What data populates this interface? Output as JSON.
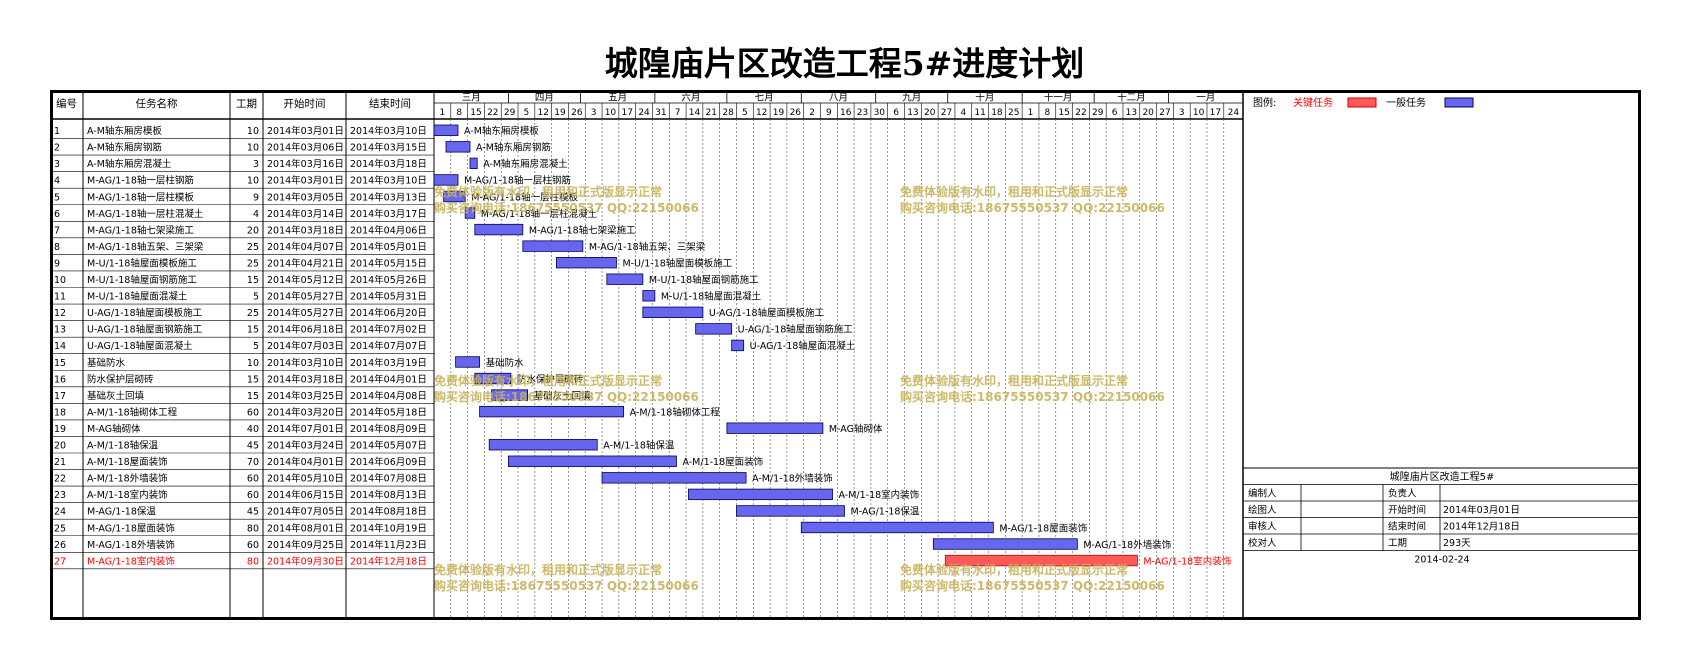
{
  "title": "城隍庙片区改造工程5#进度计划",
  "headers": {
    "id": "编号",
    "name": "任务名称",
    "dur": "工期",
    "start": "开始时间",
    "end": "结束时间"
  },
  "months": [
    "三月",
    "四月",
    "五月",
    "六月",
    "七月",
    "八月",
    "九月",
    "十月",
    "十一月",
    "十二月",
    "一月"
  ],
  "day_ticks": [
    "1",
    "8",
    "15",
    "22",
    "29",
    "5",
    "12",
    "19",
    "26",
    "3",
    "10",
    "17",
    "24",
    "31",
    "7",
    "14",
    "21",
    "28",
    "5",
    "12",
    "19",
    "26",
    "2",
    "9",
    "16",
    "23",
    "30",
    "6",
    "13",
    "20",
    "27",
    "4",
    "11",
    "18",
    "25",
    "1",
    "8",
    "15",
    "22",
    "29",
    "6",
    "13",
    "20",
    "27",
    "3",
    "10",
    "17",
    "24"
  ],
  "legend": {
    "label": "图例:",
    "critical": "关键任务",
    "normal": "一般任务"
  },
  "info": {
    "project": "城隍庙片区改造工程5#",
    "rows": [
      [
        "编制人",
        "",
        "负责人",
        ""
      ],
      [
        "绘图人",
        "",
        "开始时间",
        "2014年03月01日"
      ],
      [
        "审核人",
        "",
        "结束时间",
        "2014年12月18日"
      ],
      [
        "校对人",
        "",
        "工期",
        "293天"
      ]
    ],
    "date": "2014-02-24"
  },
  "watermark": [
    "免费体验版有水印，租用和正式版显示正常",
    "购买咨询电话:18675550537 QQ:22150066"
  ],
  "colors": {
    "critical": "#ff5a5a",
    "normal": "#6666ee",
    "critical_text": "#ff0000",
    "watermark": "#c8b25a"
  },
  "chart_data": {
    "type": "gantt",
    "time_range": [
      "2014-03-01",
      "2015-01-31"
    ],
    "tasks": [
      {
        "id": "1",
        "name": "A-M轴东厢房模板",
        "duration": 10,
        "start": "2014年03月01日",
        "end": "2014年03月10日",
        "critical": false
      },
      {
        "id": "2",
        "name": "A-M轴东厢房钢筋",
        "duration": 10,
        "start": "2014年03月06日",
        "end": "2014年03月15日",
        "critical": false
      },
      {
        "id": "3",
        "name": "A-M轴东厢房混凝土",
        "duration": 3,
        "start": "2014年03月16日",
        "end": "2014年03月18日",
        "critical": false
      },
      {
        "id": "4",
        "name": "M-AG/1-18轴一层柱钢筋",
        "duration": 10,
        "start": "2014年03月01日",
        "end": "2014年03月10日",
        "critical": false
      },
      {
        "id": "5",
        "name": "M-AG/1-18轴一层柱模板",
        "duration": 9,
        "start": "2014年03月05日",
        "end": "2014年03月13日",
        "critical": false
      },
      {
        "id": "6",
        "name": "M-AG/1-18轴一层柱混凝土",
        "duration": 4,
        "start": "2014年03月14日",
        "end": "2014年03月17日",
        "critical": false
      },
      {
        "id": "7",
        "name": "M-AG/1-18轴七架梁施工",
        "duration": 20,
        "start": "2014年03月18日",
        "end": "2014年04月06日",
        "critical": false
      },
      {
        "id": "8",
        "name": "M-AG/1-18轴五架、三架梁",
        "duration": 25,
        "start": "2014年04月07日",
        "end": "2014年05月01日",
        "critical": false
      },
      {
        "id": "9",
        "name": "M-U/1-18轴屋面模板施工",
        "duration": 25,
        "start": "2014年04月21日",
        "end": "2014年05月15日",
        "critical": false
      },
      {
        "id": "10",
        "name": "M-U/1-18轴屋面钢筋施工",
        "duration": 15,
        "start": "2014年05月12日",
        "end": "2014年05月26日",
        "critical": false
      },
      {
        "id": "11",
        "name": "M-U/1-18轴屋面混凝土",
        "duration": 5,
        "start": "2014年05月27日",
        "end": "2014年05月31日",
        "critical": false
      },
      {
        "id": "12",
        "name": "U-AG/1-18轴屋面模板施工",
        "duration": 25,
        "start": "2014年05月27日",
        "end": "2014年06月20日",
        "critical": false
      },
      {
        "id": "13",
        "name": "U-AG/1-18轴屋面钢筋施工",
        "duration": 15,
        "start": "2014年06月18日",
        "end": "2014年07月02日",
        "critical": false
      },
      {
        "id": "14",
        "name": "U-AG/1-18轴屋面混凝土",
        "duration": 5,
        "start": "2014年07月03日",
        "end": "2014年07月07日",
        "critical": false
      },
      {
        "id": "15",
        "name": "基础防水",
        "duration": 10,
        "start": "2014年03月10日",
        "end": "2014年03月19日",
        "critical": false
      },
      {
        "id": "16",
        "name": "防水保护层砌砖",
        "duration": 15,
        "start": "2014年03月18日",
        "end": "2014年04月01日",
        "critical": false
      },
      {
        "id": "17",
        "name": "基础灰土回填",
        "duration": 15,
        "start": "2014年03月25日",
        "end": "2014年04月08日",
        "critical": false
      },
      {
        "id": "18",
        "name": "A-M/1-18轴砌体工程",
        "duration": 60,
        "start": "2014年03月20日",
        "end": "2014年05月18日",
        "critical": false
      },
      {
        "id": "19",
        "name": "M-AG轴砌体",
        "duration": 40,
        "start": "2014年07月01日",
        "end": "2014年08月09日",
        "critical": false
      },
      {
        "id": "20",
        "name": "A-M/1-18轴保温",
        "duration": 45,
        "start": "2014年03月24日",
        "end": "2014年05月07日",
        "critical": false
      },
      {
        "id": "21",
        "name": "A-M/1-18屋面装饰",
        "duration": 70,
        "start": "2014年04月01日",
        "end": "2014年06月09日",
        "critical": false
      },
      {
        "id": "22",
        "name": "A-M/1-18外墙装饰",
        "duration": 60,
        "start": "2014年05月10日",
        "end": "2014年07月08日",
        "critical": false
      },
      {
        "id": "23",
        "name": "A-M/1-18室内装饰",
        "duration": 60,
        "start": "2014年06月15日",
        "end": "2014年08月13日",
        "critical": false
      },
      {
        "id": "24",
        "name": "M-AG/1-18保温",
        "duration": 45,
        "start": "2014年07月05日",
        "end": "2014年08月18日",
        "critical": false
      },
      {
        "id": "25",
        "name": "M-AG/1-18屋面装饰",
        "duration": 80,
        "start": "2014年08月01日",
        "end": "2014年10月19日",
        "critical": false
      },
      {
        "id": "26",
        "name": "M-AG/1-18外墙装饰",
        "duration": 60,
        "start": "2014年09月25日",
        "end": "2014年11月23日",
        "critical": false
      },
      {
        "id": "27",
        "name": "M-AG/1-18室内装饰",
        "duration": 80,
        "start": "2014年09月30日",
        "end": "2014年12月18日",
        "critical": true
      }
    ]
  }
}
